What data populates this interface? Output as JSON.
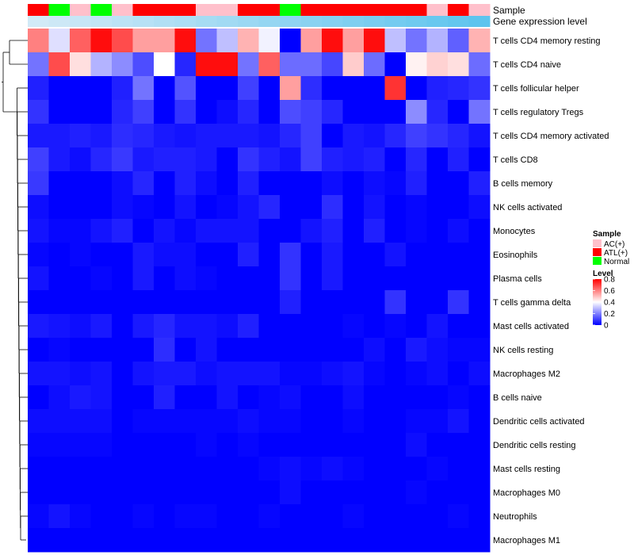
{
  "chart_data": {
    "type": "heatmap",
    "annotation_tracks": [
      {
        "name": "Sample",
        "values": [
          "ATL(+)",
          "Normal",
          "AC(+)",
          "Normal",
          "AC(+)",
          "ATL(+)",
          "ATL(+)",
          "ATL(+)",
          "AC(+)",
          "AC(+)",
          "ATL(+)",
          "ATL(+)",
          "Normal",
          "ATL(+)",
          "ATL(+)",
          "ATL(+)",
          "ATL(+)",
          "ATL(+)",
          "ATL(+)",
          "AC(+)",
          "ATL(+)",
          "AC(+)"
        ]
      },
      {
        "name": "Gene expression level",
        "values": [
          0.05,
          0.09,
          0.14,
          0.18,
          0.23,
          0.27,
          0.32,
          0.36,
          0.41,
          0.45,
          0.5,
          0.55,
          0.59,
          0.64,
          0.68,
          0.73,
          0.77,
          0.82,
          0.86,
          0.91,
          0.95,
          1.0
        ]
      }
    ],
    "rows": [
      "T cells CD4 memory resting",
      "T cells CD4 naive",
      "T cells follicular helper",
      "T cells regulatory  Tregs",
      "T cells CD4 memory activated",
      "T cells CD8",
      "B cells memory",
      "NK cells activated",
      "Monocytes",
      "Eosinophils",
      "Plasma cells",
      "T cells gamma delta",
      "Mast cells activated",
      "NK cells resting",
      "Macrophages M2",
      "B cells naive",
      "Dendritic cells activated",
      "Dendritic cells resting",
      "Mast cells resting",
      "Macrophages M0",
      "Neutrophils",
      "Macrophages M1"
    ],
    "matrix": [
      [
        0.6,
        0.35,
        0.65,
        0.78,
        0.68,
        0.55,
        0.55,
        0.78,
        0.18,
        0.3,
        0.52,
        0.38,
        0.0,
        0.55,
        0.78,
        0.55,
        0.78,
        0.3,
        0.18,
        0.28,
        0.15,
        0.52
      ],
      [
        0.18,
        0.68,
        0.45,
        0.28,
        0.22,
        0.12,
        0.4,
        0.06,
        0.78,
        0.78,
        0.18,
        0.65,
        0.17,
        0.17,
        0.11,
        0.48,
        0.17,
        0.0,
        0.42,
        0.47,
        0.45,
        0.17
      ],
      [
        0.05,
        0.0,
        0.0,
        0.0,
        0.05,
        0.18,
        0.0,
        0.13,
        0.0,
        0.0,
        0.1,
        0.0,
        0.55,
        0.07,
        0.0,
        0.0,
        0.0,
        0.72,
        0.0,
        0.05,
        0.06,
        0.08
      ],
      [
        0.08,
        0.0,
        0.0,
        0.0,
        0.06,
        0.1,
        0.0,
        0.08,
        0.0,
        0.02,
        0.06,
        0.0,
        0.12,
        0.1,
        0.06,
        0.0,
        0.0,
        0.0,
        0.22,
        0.06,
        0.0,
        0.18
      ],
      [
        0.04,
        0.04,
        0.05,
        0.04,
        0.07,
        0.06,
        0.04,
        0.03,
        0.04,
        0.04,
        0.04,
        0.03,
        0.06,
        0.1,
        0.0,
        0.04,
        0.03,
        0.06,
        0.1,
        0.08,
        0.06,
        0.03
      ],
      [
        0.1,
        0.04,
        0.02,
        0.06,
        0.09,
        0.04,
        0.05,
        0.05,
        0.04,
        0.0,
        0.08,
        0.05,
        0.03,
        0.1,
        0.05,
        0.04,
        0.05,
        0.0,
        0.06,
        0.0,
        0.05,
        0.0
      ],
      [
        0.09,
        0.0,
        0.0,
        0.0,
        0.02,
        0.06,
        0.0,
        0.05,
        0.02,
        0.0,
        0.05,
        0.0,
        0.0,
        0.0,
        0.02,
        0.0,
        0.02,
        0.01,
        0.05,
        0.0,
        0.0,
        0.05
      ],
      [
        0.02,
        0.0,
        0.0,
        0.0,
        0.02,
        0.01,
        0.0,
        0.03,
        0.0,
        0.01,
        0.03,
        0.06,
        0.0,
        0.0,
        0.07,
        0.0,
        0.03,
        0.0,
        0.01,
        0.0,
        0.0,
        0.02
      ],
      [
        0.03,
        0.01,
        0.01,
        0.03,
        0.05,
        0.0,
        0.03,
        0.01,
        0.03,
        0.03,
        0.03,
        0.0,
        0.0,
        0.03,
        0.05,
        0.0,
        0.05,
        0.0,
        0.01,
        0.0,
        0.02,
        0.0
      ],
      [
        0.01,
        0.0,
        0.01,
        0.0,
        0.0,
        0.04,
        0.02,
        0.02,
        0.0,
        0.0,
        0.05,
        0.0,
        0.08,
        0.0,
        0.04,
        0.0,
        0.0,
        0.03,
        0.0,
        0.0,
        0.0,
        0.0
      ],
      [
        0.03,
        0.0,
        0.0,
        0.01,
        0.0,
        0.04,
        0.0,
        0.02,
        0.01,
        0.0,
        0.0,
        0.0,
        0.08,
        0.0,
        0.04,
        0.0,
        0.0,
        0.0,
        0.0,
        0.0,
        0.0,
        0.0
      ],
      [
        0.0,
        0.0,
        0.0,
        0.0,
        0.0,
        0.0,
        0.0,
        0.0,
        0.0,
        0.0,
        0.0,
        0.0,
        0.05,
        0.0,
        0.0,
        0.0,
        0.0,
        0.08,
        0.0,
        0.0,
        0.08,
        0.0
      ],
      [
        0.04,
        0.03,
        0.02,
        0.04,
        0.0,
        0.04,
        0.06,
        0.03,
        0.03,
        0.02,
        0.05,
        0.0,
        0.0,
        0.0,
        0.0,
        0.01,
        0.0,
        0.01,
        0.0,
        0.03,
        0.0,
        0.0
      ],
      [
        0.0,
        0.01,
        0.0,
        0.0,
        0.0,
        0.0,
        0.07,
        0.0,
        0.03,
        0.0,
        0.0,
        0.0,
        0.0,
        0.0,
        0.0,
        0.0,
        0.02,
        0.0,
        0.04,
        0.02,
        0.01,
        0.01
      ],
      [
        0.03,
        0.03,
        0.02,
        0.03,
        0.0,
        0.03,
        0.04,
        0.04,
        0.02,
        0.03,
        0.03,
        0.03,
        0.01,
        0.01,
        0.02,
        0.03,
        0.01,
        0.0,
        0.01,
        0.02,
        0.0,
        0.02
      ],
      [
        0.0,
        0.02,
        0.04,
        0.03,
        0.0,
        0.0,
        0.05,
        0.0,
        0.0,
        0.03,
        0.0,
        0.01,
        0.02,
        0.0,
        0.0,
        0.02,
        0.0,
        0.0,
        0.0,
        0.0,
        0.01,
        0.0
      ],
      [
        0.02,
        0.02,
        0.02,
        0.02,
        0.0,
        0.01,
        0.01,
        0.01,
        0.01,
        0.01,
        0.02,
        0.01,
        0.01,
        0.0,
        0.0,
        0.01,
        0.0,
        0.0,
        0.01,
        0.01,
        0.03,
        0.0
      ],
      [
        0.01,
        0.01,
        0.01,
        0.01,
        0.0,
        0.0,
        0.0,
        0.0,
        0.01,
        0.0,
        0.01,
        0.0,
        0.0,
        0.0,
        0.0,
        0.0,
        0.0,
        0.0,
        0.02,
        0.0,
        0.0,
        0.0
      ],
      [
        0.0,
        0.0,
        0.0,
        0.0,
        0.0,
        0.0,
        0.0,
        0.0,
        0.0,
        0.0,
        0.0,
        0.01,
        0.02,
        0.01,
        0.02,
        0.01,
        0.0,
        0.0,
        0.0,
        0.01,
        0.0,
        0.0
      ],
      [
        0.0,
        0.0,
        0.0,
        0.0,
        0.0,
        0.0,
        0.0,
        0.0,
        0.0,
        0.0,
        0.0,
        0.0,
        0.02,
        0.0,
        0.0,
        0.0,
        0.0,
        0.0,
        0.01,
        0.0,
        0.0,
        0.0
      ],
      [
        0.01,
        0.03,
        0.01,
        0.0,
        0.0,
        0.01,
        0.0,
        0.01,
        0.01,
        0.0,
        0.0,
        0.01,
        0.0,
        0.0,
        0.0,
        0.01,
        0.0,
        0.0,
        0.0,
        0.0,
        0.01,
        0.0
      ],
      [
        0.0,
        0.0,
        0.0,
        0.0,
        0.0,
        0.0,
        0.0,
        0.0,
        0.0,
        0.0,
        0.0,
        0.0,
        0.0,
        0.0,
        0.0,
        0.0,
        0.0,
        0.0,
        0.0,
        0.0,
        0.0,
        0.0
      ]
    ],
    "dendrogram_row_order": [
      0,
      1,
      2,
      3,
      4,
      5,
      6,
      7,
      8,
      9,
      10,
      11,
      12,
      13,
      14,
      15,
      16,
      17,
      18,
      19,
      20,
      21
    ],
    "color_scale": {
      "low": "#0000ff",
      "mid": "#ffffff",
      "high": "#ff0000",
      "domain": [
        0,
        0.4,
        0.8
      ]
    },
    "legends": {
      "sample": {
        "title": "Sample",
        "entries": [
          {
            "label": "AC(+)",
            "color": "#ffc0cb"
          },
          {
            "label": "ATL(+)",
            "color": "#ff0000"
          },
          {
            "label": "Normal",
            "color": "#00ff00"
          }
        ]
      },
      "level": {
        "title": "Level",
        "ticks": [
          "0.8",
          "0.6",
          "0.4",
          "0.2",
          "0"
        ],
        "tick_values": [
          0.8,
          0.6,
          0.4,
          0.2,
          0.0
        ]
      }
    },
    "expression_bar_colors": {
      "low": "#d8ecf7",
      "high": "#5ec4ee"
    }
  }
}
